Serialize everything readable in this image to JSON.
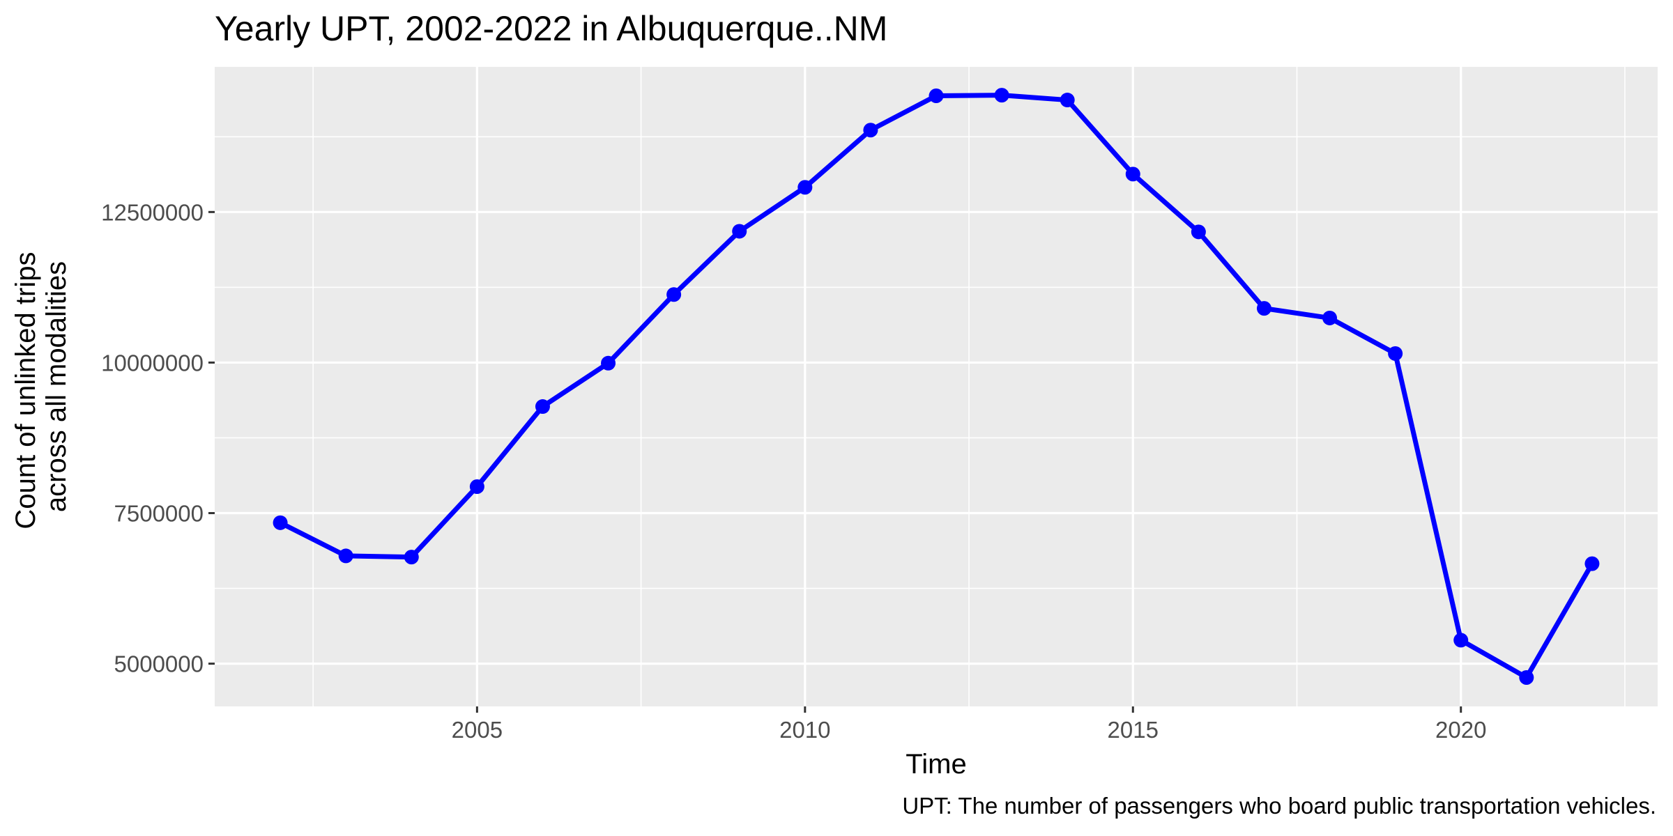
{
  "chart_data": {
    "type": "line",
    "title": "Yearly UPT, 2002-2022 in Albuquerque..NM",
    "xlabel": "Time",
    "ylabel_lines": [
      "Count of unlinked trips",
      "across all modalities"
    ],
    "caption": "UPT: The number of passengers who board public transportation vehicles.",
    "x": [
      2002,
      2003,
      2004,
      2005,
      2006,
      2007,
      2008,
      2009,
      2010,
      2011,
      2012,
      2013,
      2014,
      2015,
      2016,
      2017,
      2018,
      2019,
      2020,
      2021,
      2022
    ],
    "series": [
      {
        "values": [
          7340000,
          6790000,
          6770000,
          7940000,
          9270000,
          9990000,
          11130000,
          12180000,
          12910000,
          13860000,
          14430000,
          14440000,
          14360000,
          13130000,
          12170000,
          10900000,
          10740000,
          10150000,
          5390000,
          4770000,
          6660000
        ],
        "color": "#0000ff"
      }
    ],
    "xlim": [
      2001.0,
      2023.0
    ],
    "ylim": [
      4290000,
      14910000
    ],
    "x_ticks": [
      2005,
      2010,
      2015,
      2020
    ],
    "x_tick_labels": [
      "2005",
      "2010",
      "2015",
      "2020"
    ],
    "y_ticks": [
      5000000,
      7500000,
      10000000,
      12500000
    ],
    "y_tick_labels": [
      "5000000",
      "7500000",
      "10000000",
      "12500000"
    ],
    "panel_background": "#ebebeb",
    "grid_color": "#ffffff",
    "grid": true,
    "legend": "none"
  }
}
